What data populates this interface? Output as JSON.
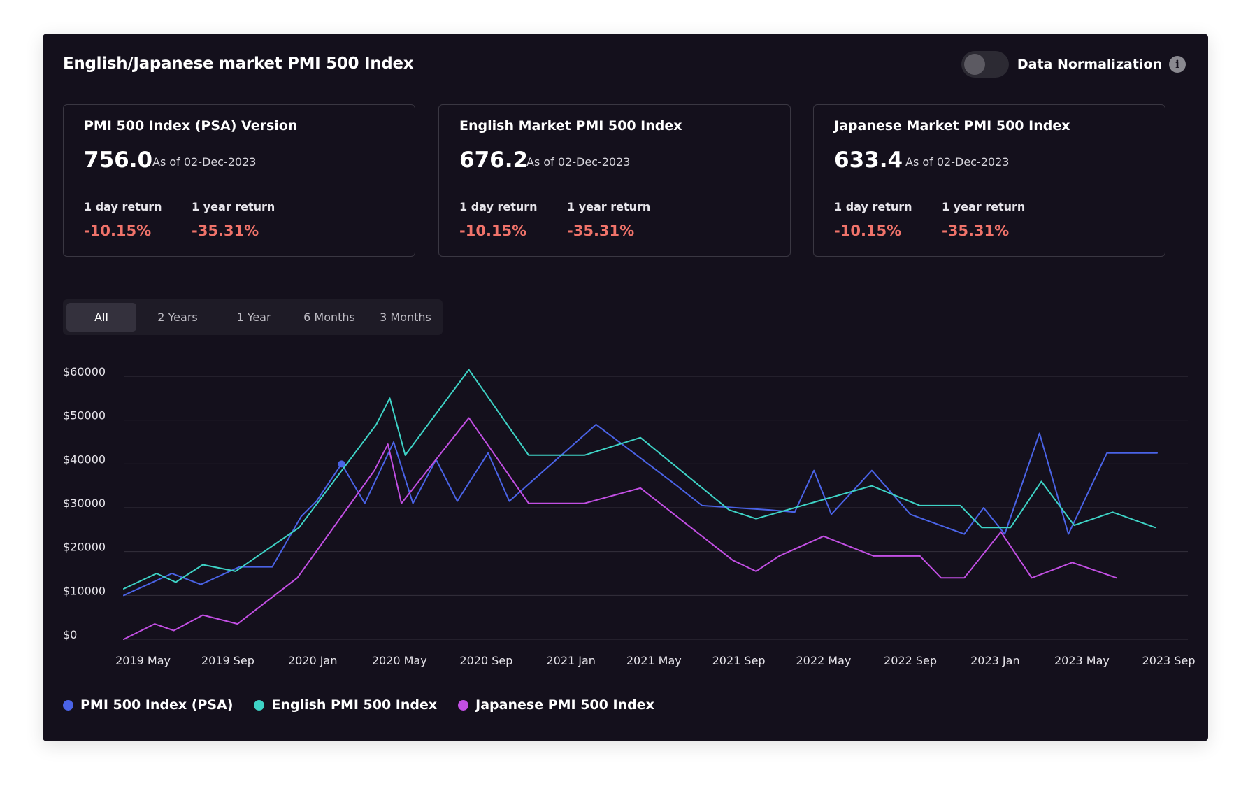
{
  "header": {
    "title": "English/Japanese market PMI 500 Index",
    "normalization_label": "Data Normalization",
    "normalization_on": false,
    "info_glyph": "i"
  },
  "stats": [
    {
      "name": "PMI 500 Index (PSA) Version",
      "value": "756.0",
      "as_of": "As of 02-Dec-2023",
      "day_return_label": "1 day return",
      "day_return": "-10.15%",
      "year_return_label": "1 year return",
      "year_return": "-35.31%"
    },
    {
      "name": "English Market PMI 500 Index",
      "value": "676.2",
      "as_of": "As of 02-Dec-2023",
      "day_return_label": "1 day return",
      "day_return": "-10.15%",
      "year_return_label": "1 year return",
      "year_return": "-35.31%"
    },
    {
      "name": "Japanese Market PMI 500 Index",
      "value": "633.4",
      "as_of": "As of 02-Dec-2023",
      "day_return_label": "1 day return",
      "day_return": "-10.15%",
      "year_return_label": "1 year return",
      "year_return": "-35.31%"
    }
  ],
  "tabs": [
    {
      "label": "All",
      "active": true
    },
    {
      "label": "2 Years",
      "active": false
    },
    {
      "label": "1 Year",
      "active": false
    },
    {
      "label": "6 Months",
      "active": false
    },
    {
      "label": "3 Months",
      "active": false
    }
  ],
  "chart_data": {
    "type": "line",
    "title": "",
    "xlabel": "",
    "ylabel": "",
    "xlim": [
      0,
      54
    ],
    "ylim": [
      0,
      60000
    ],
    "grid": true,
    "legend": "bottom-left",
    "x_ticks": [
      {
        "x": 1,
        "label": "2019 May"
      },
      {
        "x": 5.4,
        "label": "2019 Sep"
      },
      {
        "x": 9.8,
        "label": "2020 Jan"
      },
      {
        "x": 14.3,
        "label": "2020 May"
      },
      {
        "x": 18.8,
        "label": "2020 Sep"
      },
      {
        "x": 23.2,
        "label": "2021 Jan"
      },
      {
        "x": 27.5,
        "label": "2021 May"
      },
      {
        "x": 31.9,
        "label": "2021 Sep"
      },
      {
        "x": 36.3,
        "label": "2022 May"
      },
      {
        "x": 40.8,
        "label": "2022 Sep"
      },
      {
        "x": 45.2,
        "label": "2023 Jan"
      },
      {
        "x": 49.7,
        "label": "2023 May"
      },
      {
        "x": 54.2,
        "label": "2023 Sep"
      }
    ],
    "y_ticks": [
      {
        "y": 0,
        "label": "$0"
      },
      {
        "y": 10000,
        "label": "$10000"
      },
      {
        "y": 20000,
        "label": "$20000"
      },
      {
        "y": 30000,
        "label": "$30000"
      },
      {
        "y": 40000,
        "label": "$40000"
      },
      {
        "y": 50000,
        "label": "$50000"
      },
      {
        "y": 60000,
        "label": "$60000"
      }
    ],
    "series": [
      {
        "name": "PMI 500 Index (PSA)",
        "color": "#4a63e6",
        "points": [
          [
            0,
            10000
          ],
          [
            2.5,
            15000
          ],
          [
            4,
            12500
          ],
          [
            6,
            16500
          ],
          [
            7.7,
            16500
          ],
          [
            9.2,
            28000
          ],
          [
            10,
            31500
          ],
          [
            11.3,
            40000
          ],
          [
            12.5,
            31000
          ],
          [
            14,
            45000
          ],
          [
            15,
            31000
          ],
          [
            16.2,
            41000
          ],
          [
            17.3,
            31500
          ],
          [
            18.9,
            42500
          ],
          [
            20,
            31500
          ],
          [
            24.5,
            49000
          ],
          [
            28.7,
            35000
          ],
          [
            30,
            30500
          ],
          [
            33.5,
            29500
          ],
          [
            34.8,
            29000
          ],
          [
            35.8,
            38500
          ],
          [
            36.7,
            28500
          ],
          [
            38.8,
            38500
          ],
          [
            40.8,
            28500
          ],
          [
            43.6,
            24000
          ],
          [
            44.6,
            30000
          ],
          [
            45.7,
            24000
          ],
          [
            47.5,
            47000
          ],
          [
            49,
            24000
          ],
          [
            51,
            42500
          ],
          [
            53.6,
            42500
          ]
        ],
        "highlight": [
          11.3,
          40000
        ]
      },
      {
        "name": "English PMI 500 Index",
        "color": "#3ed3c6",
        "points": [
          [
            0,
            11500
          ],
          [
            1.7,
            15000
          ],
          [
            2.7,
            13000
          ],
          [
            4.1,
            17000
          ],
          [
            5.8,
            15500
          ],
          [
            9.1,
            25500
          ],
          [
            13.1,
            49000
          ],
          [
            13.8,
            55000
          ],
          [
            14.6,
            42000
          ],
          [
            17.9,
            61500
          ],
          [
            21,
            42000
          ],
          [
            23.9,
            42000
          ],
          [
            26.8,
            46000
          ],
          [
            31.4,
            29500
          ],
          [
            32.8,
            27500
          ],
          [
            38.8,
            35000
          ],
          [
            41.3,
            30500
          ],
          [
            43.4,
            30500
          ],
          [
            44.5,
            25500
          ],
          [
            46,
            25500
          ],
          [
            47.6,
            36000
          ],
          [
            49.3,
            26000
          ],
          [
            51.3,
            29000
          ],
          [
            53.5,
            25500
          ]
        ],
        "highlight": null
      },
      {
        "name": "Japanese PMI 500 Index",
        "color": "#c24fe3",
        "points": [
          [
            0,
            0
          ],
          [
            1.6,
            3500
          ],
          [
            2.6,
            2000
          ],
          [
            4.1,
            5500
          ],
          [
            5.9,
            3500
          ],
          [
            9,
            14000
          ],
          [
            13,
            38500
          ],
          [
            13.7,
            44500
          ],
          [
            14.4,
            31000
          ],
          [
            17.9,
            50500
          ],
          [
            21,
            31000
          ],
          [
            23.9,
            31000
          ],
          [
            26.8,
            34500
          ],
          [
            31.6,
            18000
          ],
          [
            32.8,
            15500
          ],
          [
            34,
            19000
          ],
          [
            36.3,
            23500
          ],
          [
            38.9,
            19000
          ],
          [
            41.3,
            19000
          ],
          [
            42.4,
            14000
          ],
          [
            43.6,
            14000
          ],
          [
            45.5,
            24500
          ],
          [
            47.1,
            14000
          ],
          [
            49.2,
            17500
          ],
          [
            51.5,
            14000
          ]
        ],
        "highlight": null
      }
    ]
  }
}
